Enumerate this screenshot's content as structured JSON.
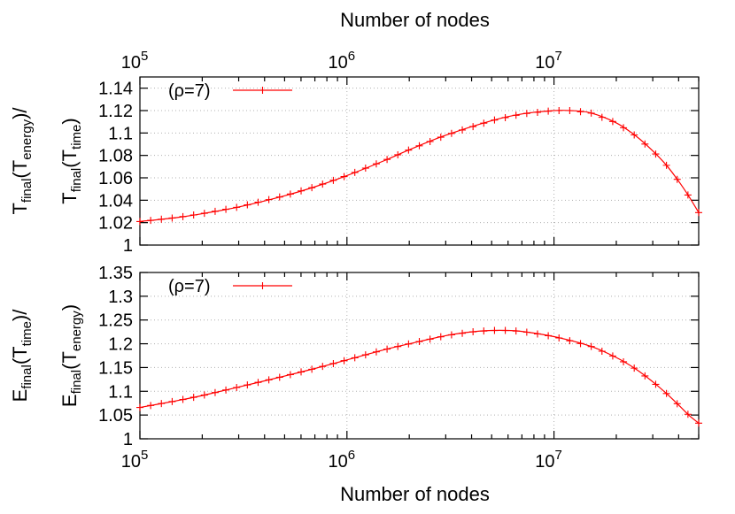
{
  "chart_data": [
    {
      "type": "line",
      "panel": "top",
      "x_scale": "log",
      "xlim": [
        100000,
        50000000
      ],
      "ylim": [
        1.0,
        1.15
      ],
      "x_ticks": [
        {
          "value": 100000,
          "base": "10",
          "exp": "5"
        },
        {
          "value": 1000000,
          "base": "10",
          "exp": "6"
        },
        {
          "value": 10000000,
          "base": "10",
          "exp": "7"
        }
      ],
      "y_ticks": [
        "1",
        "1.02",
        "1.04",
        "1.06",
        "1.08",
        "1.1",
        "1.12",
        "1.14"
      ],
      "xlabel_top": "Number of nodes",
      "ylabel": {
        "outer": {
          "pre": "T",
          "sub1": "final",
          "mid": "(T",
          "sub2": "energy",
          "post": ")/"
        },
        "inner": {
          "pre": "T",
          "sub1": "final",
          "mid": "(T",
          "sub2": "time",
          "post": ")"
        }
      },
      "legend": "top-left",
      "grid": true,
      "series": [
        {
          "name": "(ρ=7)",
          "color": "#ff0000",
          "x": [
            100000,
            150000,
            200000,
            300000,
            500000,
            700000,
            1000000,
            1500000,
            2000000,
            3000000,
            5000000,
            7000000,
            10000000,
            12000000,
            15000000,
            20000000,
            25000000,
            30000000,
            35000000,
            40000000,
            45000000,
            50000000
          ],
          "y": [
            1.021,
            1.0245,
            1.028,
            1.034,
            1.044,
            1.052,
            1.062,
            1.075,
            1.085,
            1.098,
            1.111,
            1.117,
            1.12,
            1.12,
            1.118,
            1.109,
            1.097,
            1.084,
            1.071,
            1.057,
            1.043,
            1.029
          ]
        }
      ]
    },
    {
      "type": "line",
      "panel": "bottom",
      "x_scale": "log",
      "xlim": [
        100000,
        50000000
      ],
      "ylim": [
        1.0,
        1.35
      ],
      "x_ticks": [
        {
          "value": 100000,
          "base": "10",
          "exp": "5"
        },
        {
          "value": 1000000,
          "base": "10",
          "exp": "6"
        },
        {
          "value": 10000000,
          "base": "10",
          "exp": "7"
        }
      ],
      "y_ticks": [
        "1",
        "1.05",
        "1.1",
        "1.15",
        "1.2",
        "1.25",
        "1.3",
        "1.35"
      ],
      "xlabel": "Number of nodes",
      "ylabel": {
        "outer": {
          "pre": "E",
          "sub1": "final",
          "mid": "(T",
          "sub2": "time",
          "post": ")/"
        },
        "inner": {
          "pre": "E",
          "sub1": "final",
          "mid": "(T",
          "sub2": "energy",
          "post": ")"
        }
      },
      "legend": "top-left",
      "grid": true,
      "series": [
        {
          "name": "(ρ=7)",
          "color": "#ff0000",
          "x": [
            100000,
            150000,
            200000,
            300000,
            500000,
            700000,
            1000000,
            1500000,
            2000000,
            3000000,
            4000000,
            5000000,
            6000000,
            7000000,
            10000000,
            15000000,
            20000000,
            25000000,
            30000000,
            35000000,
            40000000,
            45000000,
            50000000
          ],
          "y": [
            1.066,
            1.08,
            1.091,
            1.109,
            1.132,
            1.148,
            1.166,
            1.187,
            1.2,
            1.217,
            1.225,
            1.228,
            1.228,
            1.226,
            1.215,
            1.195,
            1.171,
            1.146,
            1.12,
            1.095,
            1.071,
            1.049,
            1.033
          ]
        }
      ]
    }
  ]
}
